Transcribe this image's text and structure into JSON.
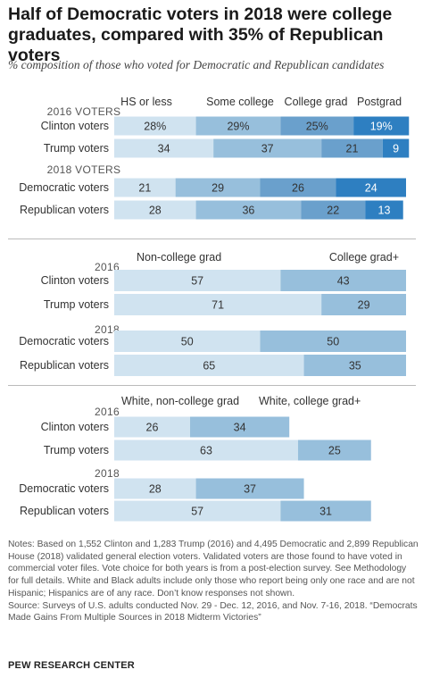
{
  "title": "Half of Democratic voters in 2018 were college graduates, compared with 35% of Republican voters",
  "subtitle": "% composition of those who voted for Democratic and Republican candidates",
  "colors": {
    "c1": "#d0e3f0",
    "c2": "#97bfdc",
    "c3": "#6aa0cc",
    "c4": "#2e7fc1",
    "divider": "#bbbbbb",
    "label": "#333333",
    "group_label": "#555555"
  },
  "chart_data": [
    {
      "type": "bar",
      "stacked": "horizontal",
      "legend": [
        "HS or less",
        "Some college",
        "College grad",
        "Postgrad"
      ],
      "groups": [
        {
          "label": "2016 VOTERS",
          "rows": [
            {
              "label": "Clinton voters",
              "values": [
                28,
                29,
                25,
                19
              ],
              "value_labels": [
                "28%",
                "29%",
                "25%",
                "19%"
              ]
            },
            {
              "label": "Trump voters",
              "values": [
                34,
                37,
                21,
                9
              ],
              "value_labels": [
                "34",
                "37",
                "21",
                "9"
              ]
            }
          ]
        },
        {
          "label": "2018 VOTERS",
          "rows": [
            {
              "label": "Democratic voters",
              "values": [
                21,
                29,
                26,
                24
              ],
              "value_labels": [
                "21",
                "29",
                "26",
                "24"
              ]
            },
            {
              "label": "Republican voters",
              "values": [
                28,
                36,
                22,
                13
              ],
              "value_labels": [
                "28",
                "36",
                "22",
                "13"
              ]
            }
          ]
        }
      ]
    },
    {
      "type": "bar",
      "stacked": "horizontal",
      "legend": [
        "Non-college grad",
        "College grad+"
      ],
      "groups": [
        {
          "label": "2016",
          "rows": [
            {
              "label": "Clinton voters",
              "values": [
                57,
                43
              ],
              "value_labels": [
                "57",
                "43"
              ]
            },
            {
              "label": "Trump voters",
              "values": [
                71,
                29
              ],
              "value_labels": [
                "71",
                "29"
              ]
            }
          ]
        },
        {
          "label": "2018",
          "rows": [
            {
              "label": "Democratic voters",
              "values": [
                50,
                50
              ],
              "value_labels": [
                "50",
                "50"
              ]
            },
            {
              "label": "Republican voters",
              "values": [
                65,
                35
              ],
              "value_labels": [
                "65",
                "35"
              ]
            }
          ]
        }
      ]
    },
    {
      "type": "bar",
      "stacked": "horizontal",
      "legend": [
        "White, non-college grad",
        "White, college grad+"
      ],
      "groups": [
        {
          "label": "2016",
          "rows": [
            {
              "label": "Clinton voters",
              "values": [
                26,
                34
              ],
              "value_labels": [
                "26",
                "34"
              ]
            },
            {
              "label": "Trump voters",
              "values": [
                63,
                25
              ],
              "value_labels": [
                "63",
                "25"
              ]
            }
          ]
        },
        {
          "label": "2018",
          "rows": [
            {
              "label": "Democratic voters",
              "values": [
                28,
                37
              ],
              "value_labels": [
                "28",
                "37"
              ]
            },
            {
              "label": "Republican voters",
              "values": [
                57,
                31
              ],
              "value_labels": [
                "57",
                "31"
              ]
            }
          ]
        }
      ]
    }
  ],
  "notes": "Notes: Based on 1,552 Clinton and 1,283 Trump (2016) and 4,495 Democratic and 2,899 Republican House (2018) validated general election voters. Validated voters are those found to have voted in commercial voter files. Vote choice for both years is from a post-election survey. See Methodology for full details. White and Black adults include only those who report being only one race and are not Hispanic; Hispanics are of any race. Don’t know responses not shown.",
  "source": "Source: Surveys of U.S. adults conducted Nov. 29 - Dec. 12, 2016, and Nov. 7-16, 2018. “Democrats Made Gains From Multiple Sources in 2018 Midterm Victories”",
  "brand": "PEW RESEARCH CENTER"
}
